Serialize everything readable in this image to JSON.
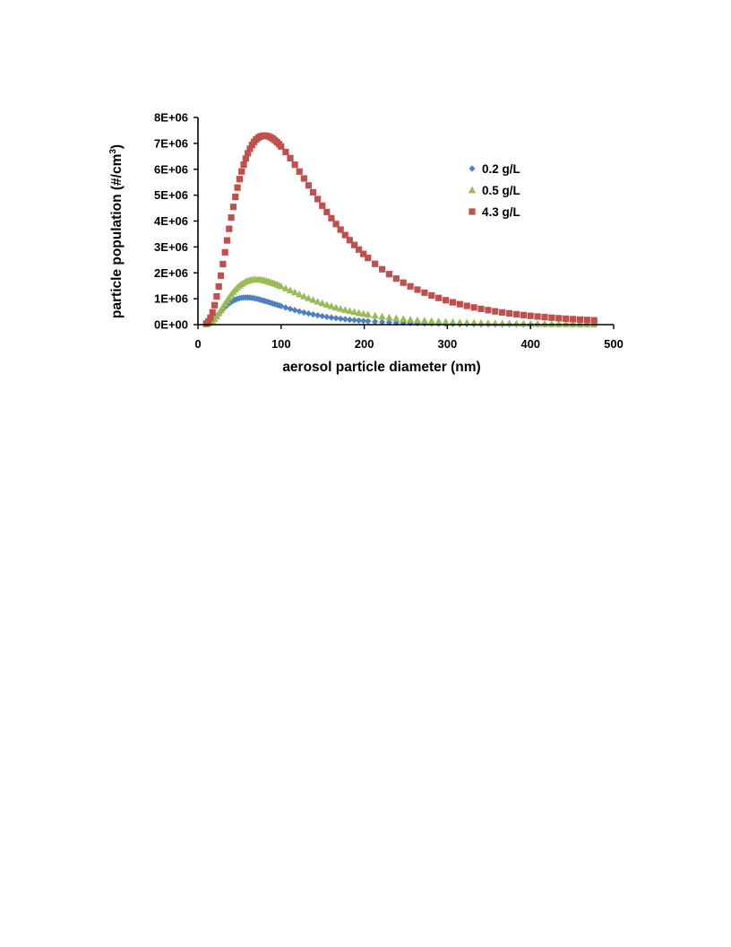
{
  "chart_data": {
    "type": "scatter",
    "xlabel": "aerosol particle diameter (nm)",
    "ylabel": {
      "main": "particle population (#/cm",
      "sup": "3",
      "close": ")"
    },
    "xlim": [
      0,
      500
    ],
    "ylim": [
      0,
      8000000
    ],
    "x_ticks": [
      "0",
      "100",
      "200",
      "300",
      "400",
      "500"
    ],
    "y_ticks": [
      "0E+00",
      "1E+06",
      "2E+06",
      "3E+06",
      "4E+06",
      "5E+06",
      "6E+06",
      "7E+06",
      "8E+06"
    ],
    "grid": false,
    "legend_position": "upper-right",
    "series": [
      {
        "name": "0.2 g/L",
        "marker": "diamond",
        "color": "#4f81bd",
        "peak_x": 58,
        "peak_y": 1050000,
        "sigma": 0.62,
        "x_max": 480
      },
      {
        "name": "0.5 g/L",
        "marker": "triangle",
        "color": "#9bbb59",
        "peak_x": 70,
        "peak_y": 1750000,
        "sigma": 0.62,
        "x_max": 480
      },
      {
        "name": "4.3 g/L",
        "marker": "square",
        "color": "#c0504d",
        "peak_x": 80,
        "peak_y": 7300000,
        "sigma": 0.65,
        "x_max": 480
      }
    ]
  }
}
